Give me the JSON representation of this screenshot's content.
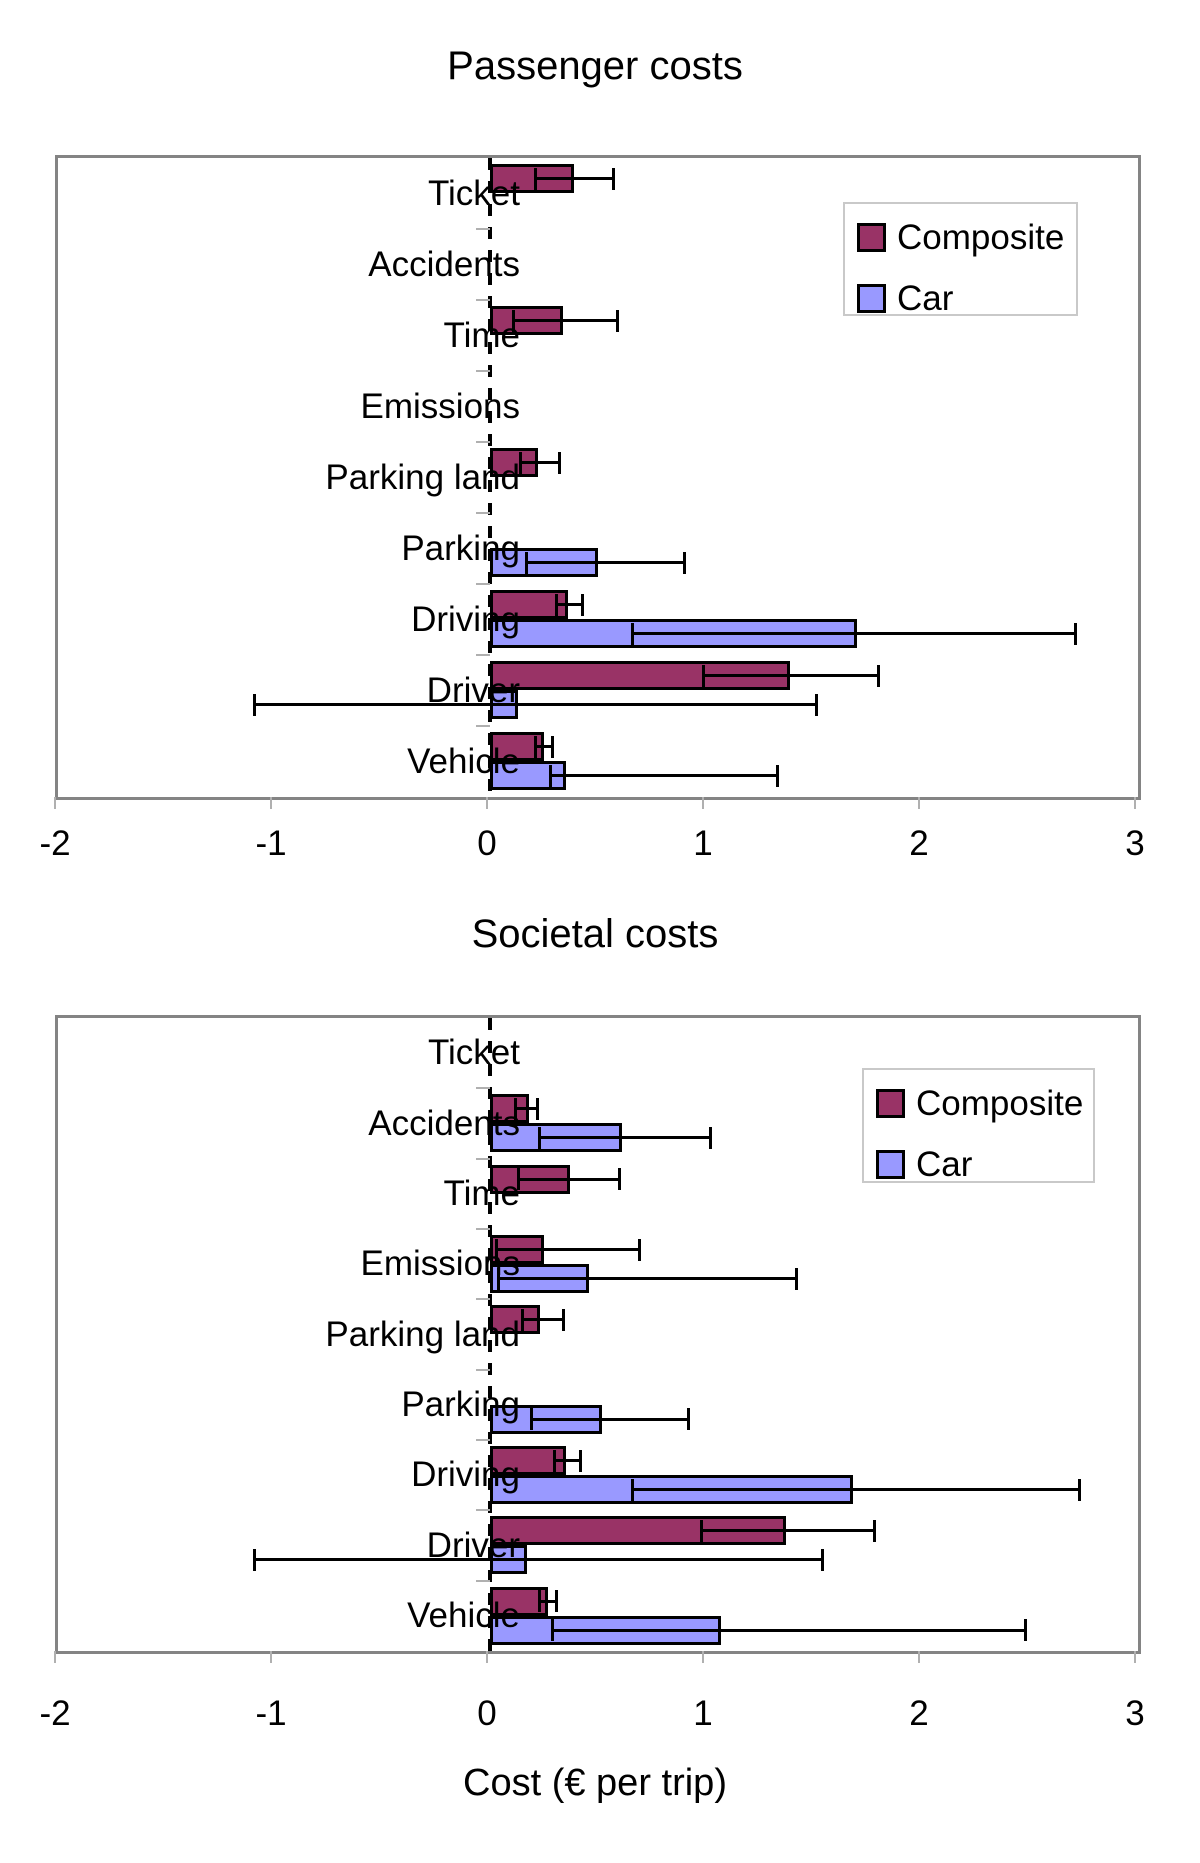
{
  "figure": {
    "background": "#ffffff"
  },
  "legend": {
    "items": [
      {
        "label": "Composite",
        "color": "#993366"
      },
      {
        "label": "Car",
        "color": "#9999ff"
      }
    ]
  },
  "axis": {
    "xlabel": "Cost (€ per trip)",
    "xticks": [
      "-2",
      "-1",
      "0",
      "1",
      "2",
      "3"
    ]
  },
  "chart_data": [
    {
      "type": "bar",
      "orientation": "horizontal",
      "title": "Passenger costs",
      "xlim": [
        -2,
        3
      ],
      "xticks": [
        -2,
        -1,
        0,
        1,
        2,
        3
      ],
      "grid": false,
      "legend_position": "upper-right-inside",
      "categories": [
        "Ticket",
        "Accidents",
        "Time",
        "Emissions",
        "Parking land",
        "Parking",
        "Driving",
        "Driver",
        "Vehicle"
      ],
      "series": [
        {
          "name": "Composite",
          "color": "#993366",
          "values": [
            0.39,
            null,
            0.34,
            null,
            0.22,
            null,
            0.36,
            1.39,
            0.25
          ],
          "error_low": [
            0.21,
            null,
            0.11,
            null,
            0.14,
            null,
            0.31,
            0.99,
            0.21
          ],
          "error_high": [
            0.57,
            null,
            0.59,
            null,
            0.32,
            null,
            0.43,
            1.8,
            0.29
          ]
        },
        {
          "name": "Car",
          "color": "#9999ff",
          "values": [
            null,
            null,
            null,
            null,
            null,
            0.5,
            1.7,
            0.13,
            0.35
          ],
          "error_low": [
            null,
            null,
            null,
            null,
            null,
            0.17,
            0.66,
            -1.09,
            0.28
          ],
          "error_high": [
            null,
            null,
            null,
            null,
            null,
            0.9,
            2.71,
            1.51,
            1.33
          ]
        }
      ]
    },
    {
      "type": "bar",
      "orientation": "horizontal",
      "title": "Societal costs",
      "xlim": [
        -2,
        3
      ],
      "xticks": [
        -2,
        -1,
        0,
        1,
        2,
        3
      ],
      "grid": false,
      "legend_position": "upper-right-inside",
      "categories": [
        "Ticket",
        "Accidents",
        "Time",
        "Emissions",
        "Parking land",
        "Parking",
        "Driving",
        "Driver",
        "Vehicle"
      ],
      "series": [
        {
          "name": "Composite",
          "color": "#993366",
          "values": [
            null,
            0.18,
            0.37,
            0.25,
            0.23,
            null,
            0.35,
            1.37,
            0.27
          ],
          "error_low": [
            null,
            0.12,
            0.13,
            0.03,
            0.15,
            null,
            0.3,
            0.98,
            0.23
          ],
          "error_high": [
            null,
            0.22,
            0.6,
            0.69,
            0.34,
            null,
            0.42,
            1.78,
            0.31
          ]
        },
        {
          "name": "Car",
          "color": "#9999ff",
          "values": [
            null,
            0.61,
            null,
            0.46,
            null,
            0.52,
            1.68,
            0.17,
            1.07
          ],
          "error_low": [
            null,
            0.23,
            null,
            0.04,
            null,
            0.19,
            0.66,
            -1.09,
            0.29
          ],
          "error_high": [
            null,
            1.02,
            null,
            1.42,
            null,
            0.92,
            2.73,
            1.54,
            2.48
          ]
        }
      ]
    }
  ]
}
